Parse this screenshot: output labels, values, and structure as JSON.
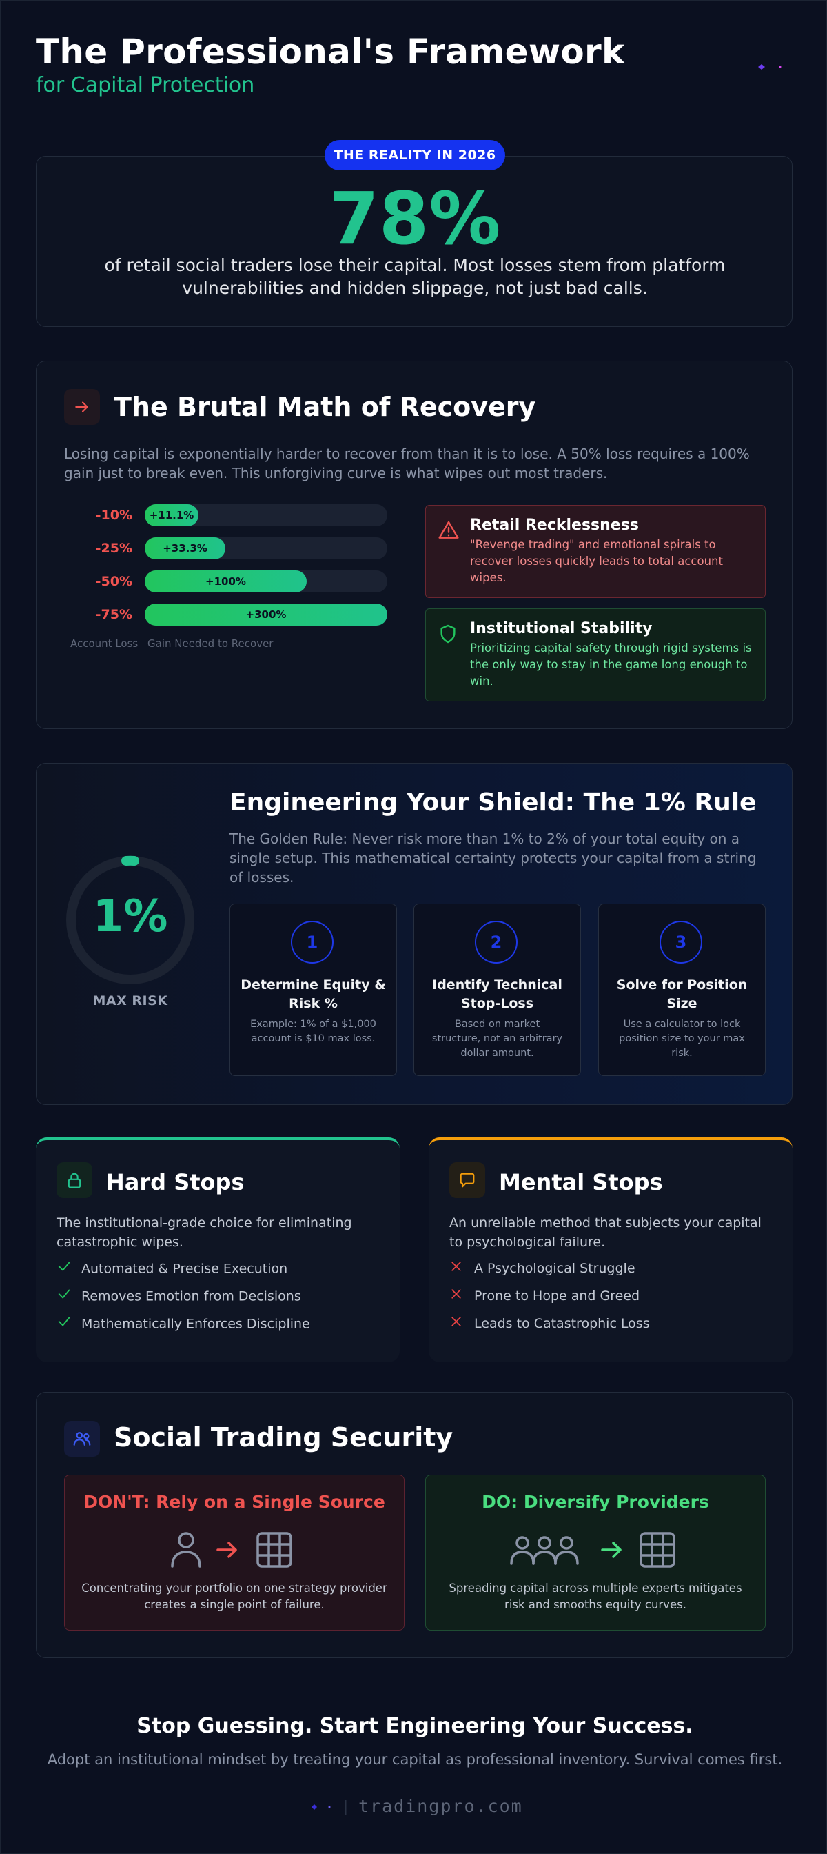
{
  "header": {
    "title": "The Professional's Framework",
    "subtitle": "for Capital Protection",
    "logo_icon": "spark-logo-icon"
  },
  "reality": {
    "badge": "THE REALITY IN 2026",
    "stat": "78%",
    "text": "of retail social traders lose their capital. Most losses stem from platform vulnerabilities and hidden slippage, not just bad calls."
  },
  "recovery": {
    "icon": "arrow-right-icon",
    "title": "The Brutal Math of Recovery",
    "text": "Losing capital is exponentially harder to recover from than it is to lose. A 50% loss requires a 100% gain just to break even. This unforgiving curve is what wipes out most traders.",
    "bars": [
      {
        "loss": "-10%",
        "gain": "+11.1%",
        "gain_value": 11.1
      },
      {
        "loss": "-25%",
        "gain": "+33.3%",
        "gain_value": 33.3
      },
      {
        "loss": "-50%",
        "gain": "+100%",
        "gain_value": 100
      },
      {
        "loss": "-75%",
        "gain": "+300%",
        "gain_value": 300
      }
    ],
    "caption_loss": "Account Loss",
    "caption_gain": "Gain Needed to Recover",
    "retail": {
      "icon": "warning-icon",
      "title": "Retail Recklessness",
      "text": "\"Revenge trading\" and emotional spirals to recover losses quickly leads to total account wipes."
    },
    "institutional": {
      "icon": "shield-icon",
      "title": "Institutional Stability",
      "text": "Prioritizing capital safety through rigid systems is the only way to stay in the game long enough to win."
    }
  },
  "shield": {
    "gauge_value": "1%",
    "gauge_caption": "MAX RISK",
    "title": "Engineering Your Shield: The 1% Rule",
    "text": "The Golden Rule: Never risk more than 1% to 2% of your total equity on a single setup. This mathematical certainty protects your capital from a string of losses.",
    "steps": [
      {
        "num": "1",
        "title": "Determine Equity & Risk %",
        "text": "Example: 1% of a $1,000 account is $10 max loss."
      },
      {
        "num": "2",
        "title": "Identify Technical Stop-Loss",
        "text": "Based on market structure, not an arbitrary dollar amount."
      },
      {
        "num": "3",
        "title": "Solve for Position Size",
        "text": "Use a calculator to lock position size to your max risk."
      }
    ]
  },
  "stops": {
    "hard": {
      "icon": "lock-icon",
      "title": "Hard Stops",
      "text": "The institutional-grade choice for eliminating catastrophic wipes.",
      "items": [
        "Automated & Precise Execution",
        "Removes Emotion from Decisions",
        "Mathematically Enforces Discipline"
      ]
    },
    "mental": {
      "icon": "speech-bubble-icon",
      "title": "Mental Stops",
      "text": "An unreliable method that subjects your capital to psychological failure.",
      "items": [
        "A Psychological Struggle",
        "Prone to Hope and Greed",
        "Leads to Catastrophic Loss"
      ]
    }
  },
  "social": {
    "icon": "users-icon",
    "title": "Social Trading Security",
    "dont": {
      "title": "DON'T: Rely on a Single Source",
      "text": "Concentrating your portfolio on one strategy provider creates a single point of failure."
    },
    "do": {
      "title": "DO: Diversify Providers",
      "text": "Spreading capital across multiple experts mitigates risk and smooths equity curves."
    }
  },
  "footer": {
    "title": "Stop Guessing. Start Engineering Your Success.",
    "text": "Adopt an institutional mindset by treating your capital as professional inventory. Survival comes first.",
    "brand": "tradingpro.com"
  },
  "colors": {
    "accent_green": "#22c38e",
    "accent_blue": "#1533f0",
    "danger_red": "#ef5350",
    "warning_orange": "#f59e0b"
  }
}
